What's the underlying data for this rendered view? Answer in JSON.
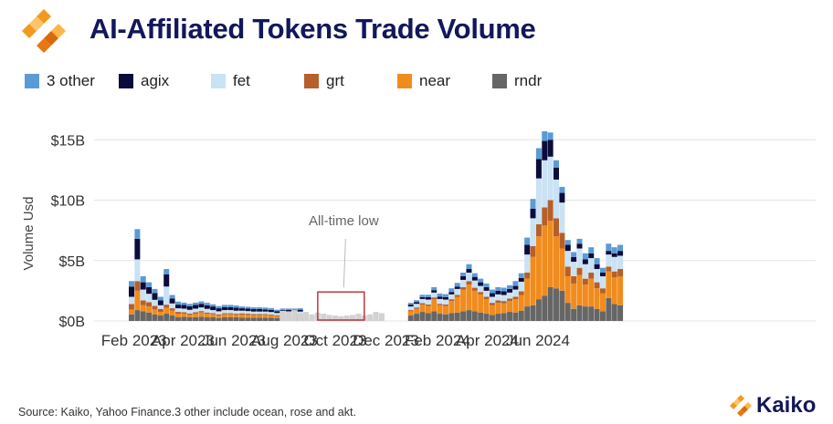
{
  "header": {
    "title": "AI-Affiliated Tokens Trade Volume",
    "logo_icon": "kaiko-logo-icon"
  },
  "footer": {
    "source": "Source: Kaiko, Yahoo Finance.3 other include ocean, rose and akt.",
    "brand": "Kaiko"
  },
  "colors": {
    "3 other": "#5b9bd5",
    "agix": "#0c0c3c",
    "fet": "#c9e2f4",
    "grt": "#b5602a",
    "near": "#f08c1e",
    "rndr": "#666666",
    "low_period": "#d2d2d2",
    "annotation_box": "#c0282d",
    "title": "#12185a"
  },
  "chart_data": {
    "type": "bar",
    "stacked": true,
    "ylabel": "Volume Usd",
    "ylim": [
      0,
      16
    ],
    "yticks": [
      0,
      5,
      10,
      15
    ],
    "ytick_labels": [
      "$0B",
      "$5B",
      "$10B",
      "$15B"
    ],
    "grid": true,
    "legend_position": "top-left",
    "x_start": "2023-01-29",
    "x_interval": "weekly",
    "xtick_labels": [
      {
        "label": "Feb 2023",
        "date": "2023-02-01"
      },
      {
        "label": "Apr 2023",
        "date": "2023-04-01"
      },
      {
        "label": "Jun 2023",
        "date": "2023-06-01"
      },
      {
        "label": "Aug 2023",
        "date": "2023-08-01"
      },
      {
        "label": "Oct 2023",
        "date": "2023-10-01"
      },
      {
        "label": "Dec 2023",
        "date": "2023-12-01"
      },
      {
        "label": "Feb 2024",
        "date": "2024-02-01"
      },
      {
        "label": "Apr 2024",
        "date": "2024-04-01"
      },
      {
        "label": "Jun 2024",
        "date": "2024-06-01"
      }
    ],
    "annotation": {
      "text": "All-time low",
      "from_date": "2023-09-10",
      "to_date": "2023-11-05",
      "ymax": 2.4
    },
    "low_period": {
      "from": "2023-07-30",
      "to": "2023-11-26",
      "values": [
        0.85,
        0.8,
        0.9,
        0.65,
        0.75,
        0.55,
        0.7,
        0.6,
        0.5,
        0.45,
        0.4,
        0.45,
        0.5,
        0.6,
        0.45,
        0.55,
        0.75,
        0.65
      ]
    },
    "series": [
      {
        "name": "rndr",
        "values": [
          0.55,
          0.9,
          0.8,
          0.7,
          0.55,
          0.45,
          0.6,
          0.45,
          0.3,
          0.35,
          0.3,
          0.3,
          0.35,
          0.3,
          0.3,
          0.25,
          0.3,
          0.3,
          0.3,
          0.28,
          0.28,
          0.28,
          0.28,
          0.28,
          0.28,
          0.25,
          0.3,
          0.3,
          0.28,
          0.3,
          0,
          0,
          0,
          0,
          0,
          0,
          0,
          0,
          0,
          0,
          0,
          0,
          0,
          0,
          0,
          0,
          0,
          0,
          0.45,
          0.6,
          0.75,
          0.65,
          0.8,
          0.6,
          0.55,
          0.65,
          0.7,
          0.8,
          0.9,
          0.8,
          0.7,
          0.6,
          0.5,
          0.6,
          0.65,
          0.75,
          0.7,
          0.85,
          1.2,
          1.3,
          1.8,
          2.1,
          2.8,
          2.7,
          2.5,
          1.5,
          1.0,
          1.3,
          1.2,
          1.2,
          1.0,
          0.8,
          1.9,
          1.4,
          1.3
        ]
      },
      {
        "name": "near",
        "values": [
          0.4,
          1.6,
          0.5,
          0.5,
          0.4,
          0.3,
          0.5,
          0.4,
          0.3,
          0.25,
          0.2,
          0.3,
          0.35,
          0.3,
          0.25,
          0.2,
          0.25,
          0.25,
          0.2,
          0.25,
          0.22,
          0.2,
          0.2,
          0.22,
          0.18,
          0.15,
          0.18,
          0.18,
          0.2,
          0.2,
          0,
          0,
          0,
          0,
          0,
          0,
          0,
          0,
          0,
          0,
          0,
          0,
          0,
          0,
          0,
          0,
          0,
          0,
          0.35,
          0.4,
          0.6,
          0.6,
          1.0,
          0.7,
          0.7,
          1.0,
          1.3,
          1.8,
          2.1,
          1.7,
          1.5,
          1.2,
          0.8,
          0.9,
          0.8,
          0.9,
          1.1,
          1.3,
          2.3,
          4.0,
          5.2,
          5.8,
          5.5,
          4.3,
          3.5,
          2.2,
          2.1,
          2.5,
          1.8,
          2.3,
          1.7,
          1.5,
          2.2,
          2.2,
          2.4
        ]
      },
      {
        "name": "grt",
        "values": [
          0.45,
          0.8,
          0.4,
          0.35,
          0.3,
          0.25,
          0.25,
          0.2,
          0.15,
          0.12,
          0.12,
          0.12,
          0.12,
          0.1,
          0.1,
          0.1,
          0.1,
          0.1,
          0.1,
          0.1,
          0.1,
          0.1,
          0.1,
          0.08,
          0.08,
          0.08,
          0.08,
          0.08,
          0.08,
          0.08,
          0,
          0,
          0,
          0,
          0,
          0,
          0,
          0,
          0,
          0,
          0,
          0,
          0,
          0,
          0,
          0,
          0,
          0,
          0.1,
          0.12,
          0.12,
          0.12,
          0.15,
          0.12,
          0.12,
          0.15,
          0.15,
          0.2,
          0.3,
          0.25,
          0.2,
          0.2,
          0.2,
          0.2,
          0.2,
          0.2,
          0.2,
          0.3,
          0.5,
          0.9,
          1.0,
          1.5,
          1.7,
          1.5,
          1.3,
          0.8,
          0.6,
          0.6,
          0.5,
          0.5,
          0.5,
          0.4,
          0.4,
          0.5,
          0.6
        ]
      },
      {
        "name": "fet",
        "values": [
          0.6,
          1.8,
          0.9,
          0.7,
          0.5,
          0.3,
          1.5,
          0.4,
          0.3,
          0.3,
          0.3,
          0.3,
          0.3,
          0.3,
          0.25,
          0.25,
          0.25,
          0.25,
          0.25,
          0.22,
          0.22,
          0.2,
          0.2,
          0.2,
          0.2,
          0.18,
          0.2,
          0.2,
          0.2,
          0.2,
          0,
          0,
          0,
          0,
          0,
          0,
          0,
          0,
          0,
          0,
          0,
          0,
          0,
          0,
          0,
          0,
          0,
          0,
          0.3,
          0.3,
          0.35,
          0.4,
          0.4,
          0.4,
          0.4,
          0.4,
          0.5,
          0.6,
          0.7,
          0.6,
          0.5,
          0.5,
          0.5,
          0.5,
          0.5,
          0.5,
          0.6,
          0.8,
          1.5,
          2.3,
          3.8,
          3.9,
          3.6,
          3.2,
          2.5,
          1.3,
          1.2,
          1.6,
          1.2,
          1.2,
          1.1,
          1.0,
          1.0,
          1.2,
          1.1
        ]
      },
      {
        "name": "agix",
        "values": [
          0.85,
          1.7,
          0.6,
          0.55,
          0.55,
          0.4,
          1.0,
          0.4,
          0.3,
          0.3,
          0.3,
          0.3,
          0.3,
          0.3,
          0.3,
          0.25,
          0.25,
          0.25,
          0.25,
          0.2,
          0.2,
          0.2,
          0.2,
          0.18,
          0.18,
          0.15,
          0.15,
          0.15,
          0.15,
          0.15,
          0,
          0,
          0,
          0,
          0,
          0,
          0,
          0,
          0,
          0,
          0,
          0,
          0,
          0,
          0,
          0,
          0,
          0,
          0.15,
          0.15,
          0.15,
          0.2,
          0.2,
          0.2,
          0.2,
          0.2,
          0.2,
          0.3,
          0.3,
          0.3,
          0.3,
          0.3,
          0.3,
          0.3,
          0.3,
          0.3,
          0.3,
          0.3,
          0.8,
          0.8,
          1.6,
          1.6,
          1.4,
          1.0,
          0.8,
          0.5,
          0.4,
          0.4,
          0.4,
          0.4,
          0.4,
          0.3,
          0.3,
          0.3,
          0.4
        ]
      },
      {
        "name": "3 other",
        "values": [
          0.45,
          0.8,
          0.5,
          0.4,
          0.35,
          0.3,
          0.45,
          0.3,
          0.25,
          0.2,
          0.2,
          0.2,
          0.2,
          0.2,
          0.18,
          0.18,
          0.18,
          0.18,
          0.18,
          0.15,
          0.15,
          0.15,
          0.15,
          0.15,
          0.15,
          0.12,
          0.12,
          0.12,
          0.12,
          0.12,
          0,
          0,
          0,
          0,
          0,
          0,
          0,
          0,
          0,
          0,
          0,
          0,
          0,
          0,
          0,
          0,
          0,
          0,
          0.15,
          0.15,
          0.2,
          0.2,
          0.25,
          0.25,
          0.25,
          0.3,
          0.3,
          0.3,
          0.4,
          0.3,
          0.3,
          0.3,
          0.3,
          0.3,
          0.3,
          0.3,
          0.4,
          0.4,
          0.6,
          0.8,
          0.9,
          0.8,
          0.6,
          0.6,
          0.5,
          0.4,
          0.4,
          0.4,
          0.5,
          0.5,
          0.5,
          0.4,
          0.6,
          0.5,
          0.5
        ]
      }
    ]
  }
}
